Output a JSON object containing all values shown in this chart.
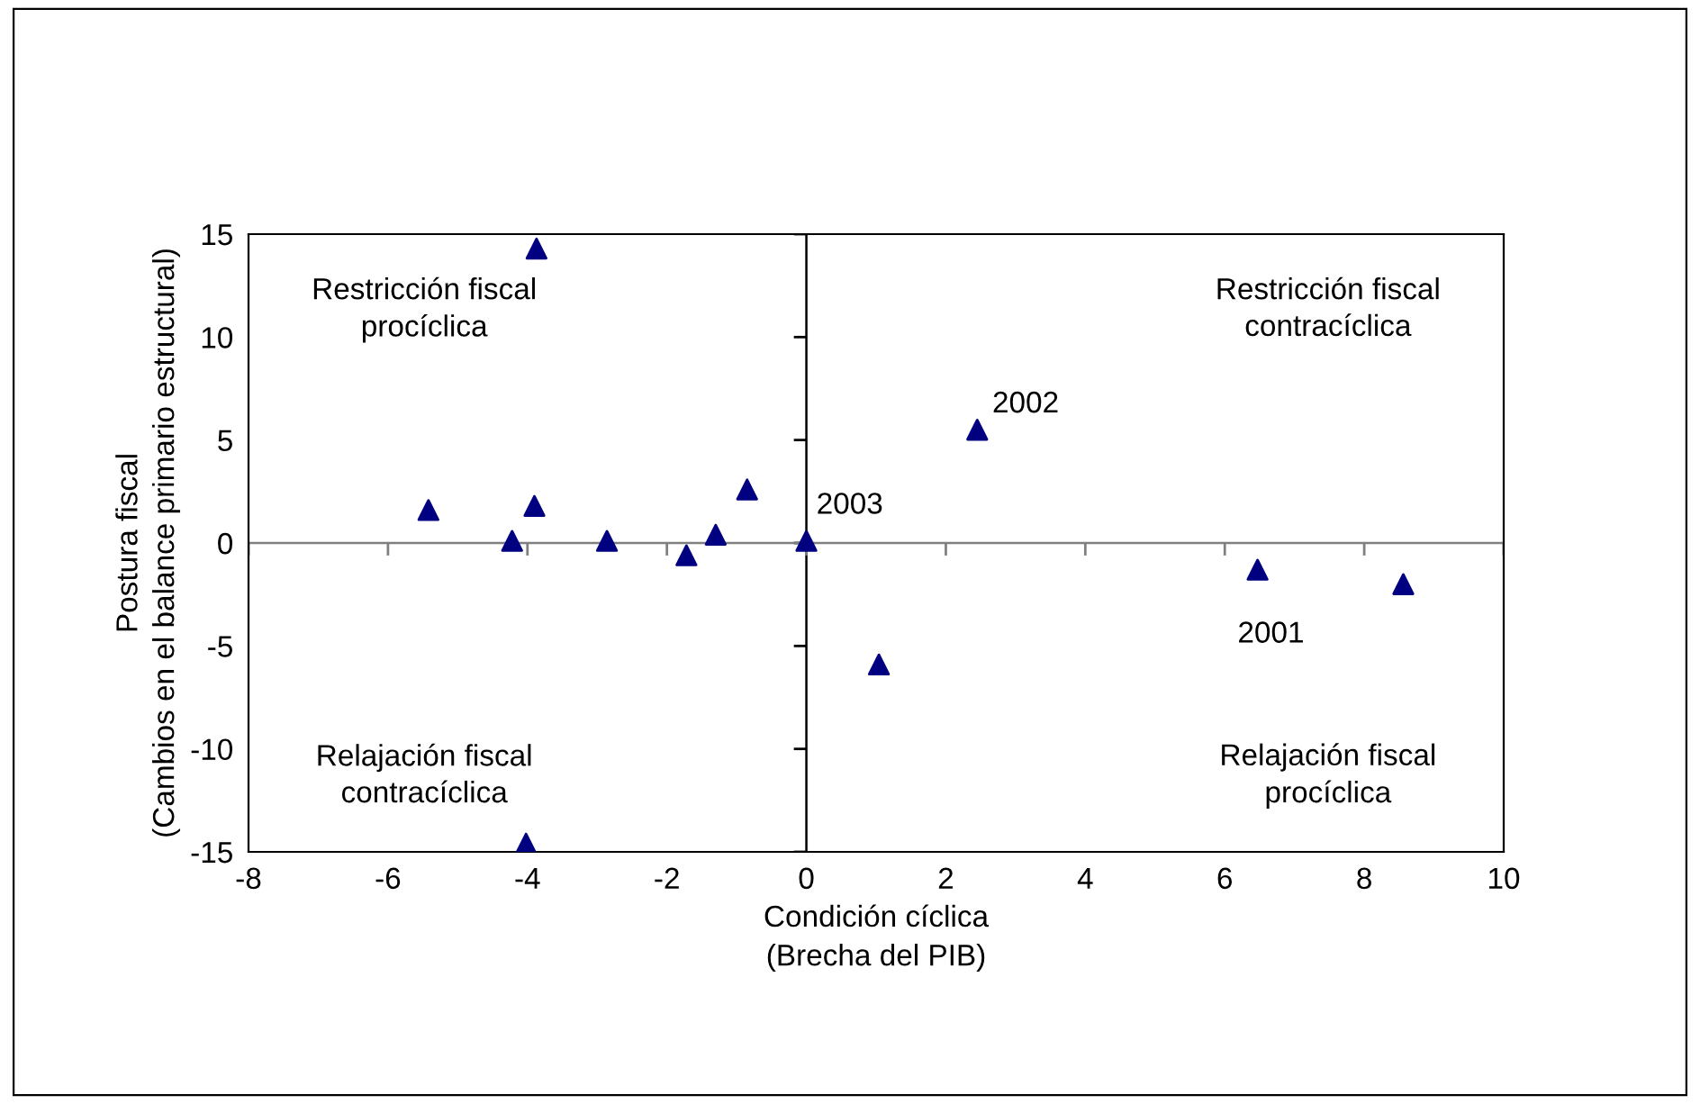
{
  "chart_data": {
    "type": "scatter",
    "xlabel": "Condición cíclica\n(Brecha del PIB)",
    "ylabel": "Postura fiscal\n(Cambios en el balance primario estructural)",
    "series": [
      {
        "color": "#000080",
        "x": [
          -5.42,
          -3.87,
          -3.9,
          -4.22,
          -2.86,
          -1.72,
          -1.3,
          -0.85,
          0,
          2.45,
          1.04,
          6.47,
          8.56,
          -4.02
        ],
        "values": [
          1.6,
          14.3,
          1.8,
          0.1,
          0.1,
          -0.6,
          0.4,
          2.6,
          0.1,
          5.5,
          -5.9,
          -1.3,
          -2.0,
          -14.6
        ]
      }
    ],
    "marker": "triangle",
    "xlim": [
      -8,
      10
    ],
    "xticks": [
      -8,
      -6,
      -4,
      -2,
      0,
      2,
      4,
      6,
      8,
      10
    ],
    "ylim": [
      -15,
      15
    ],
    "yticks": [
      -15,
      -10,
      -5,
      0,
      5,
      10,
      15
    ],
    "ref_lines": [
      {
        "axis": "x",
        "value": 0,
        "color": "#000000"
      },
      {
        "axis": "y",
        "value": 0,
        "color": "#808080"
      }
    ],
    "annotations": [
      {
        "text": "2003",
        "x": 0,
        "y": 0.1
      },
      {
        "text": "2002",
        "x": 2.45,
        "y": 5.5
      },
      {
        "text": "2001",
        "x": 6.47,
        "y": -1.3
      },
      "Restricción fiscal\nprocíclica",
      "Restricción fiscal\ncontracíclica",
      "Relajación fiscal\ncontracíclica",
      "Relajación fiscal\nprocíclica"
    ],
    "grid": false
  }
}
